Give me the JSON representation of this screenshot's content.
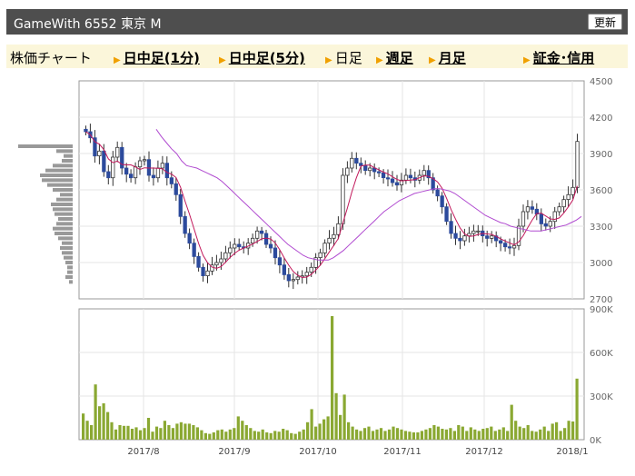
{
  "header": {
    "title": "GameWith  6552  東京 M",
    "refresh_label": "更新"
  },
  "nav": {
    "label": "株価チャート",
    "items": [
      {
        "label": "日中足(1分)",
        "link": true
      },
      {
        "label": "日中足(5分)",
        "link": true
      },
      {
        "label": "日足",
        "link": false
      },
      {
        "label": "週足",
        "link": true
      },
      {
        "label": "月足",
        "link": true
      },
      {
        "label": "証金･信用",
        "link": true
      }
    ]
  },
  "colors": {
    "up": "#ffffff",
    "down": "#2c4a9c",
    "ma_short": "#c2185b",
    "ma_long": "#b04ad0",
    "volume": "#8aa832",
    "accent": "#f0a000"
  },
  "chart_data": [
    {
      "type": "candlestick",
      "ylim": [
        2700,
        4500
      ],
      "yticks": [
        "4500",
        "4200",
        "3900",
        "3600",
        "3300",
        "3000",
        "2700"
      ],
      "xticks": [
        "2017/8",
        "2017/9",
        "2017/10",
        "2017/11",
        "2017/12",
        "2018/1"
      ],
      "series": [
        {
          "values": [
            4080,
            4030,
            3880,
            3920,
            3750,
            3700,
            3870,
            3950,
            3780,
            3730,
            3700,
            3790,
            3840,
            3850,
            3720,
            3700,
            3780,
            3820,
            3700,
            3650,
            3560,
            3380,
            3240,
            3160,
            3050,
            2960,
            2890,
            2930,
            2980,
            3000,
            3030,
            3080,
            3120,
            3150,
            3130,
            3120,
            3160,
            3200,
            3260,
            3240,
            3150,
            3120,
            3040,
            2980,
            2900,
            2850,
            2860,
            2880,
            2890,
            2920,
            2960,
            3040,
            3080,
            3160,
            3200,
            3230,
            3320,
            3720,
            3780,
            3860,
            3820,
            3800,
            3760,
            3780,
            3750,
            3740,
            3700,
            3690,
            3660,
            3640,
            3680,
            3720,
            3700,
            3680,
            3720,
            3760,
            3700,
            3600,
            3550,
            3460,
            3340,
            3240,
            3200,
            3180,
            3220,
            3240,
            3260,
            3260,
            3220,
            3200,
            3220,
            3180,
            3160,
            3130,
            3120,
            3140,
            3300,
            3420,
            3460,
            3440,
            3400,
            3320,
            3300,
            3340,
            3420,
            3460,
            3520,
            3560,
            3620,
            4000
          ]
        },
        {
          "values": [
            4100,
            4040,
            3990,
            3940,
            3900,
            3840,
            3800,
            3790,
            3780,
            3760,
            3740,
            3720,
            3700,
            3670,
            3630,
            3590,
            3550,
            3510,
            3470,
            3430,
            3390,
            3350,
            3310,
            3270,
            3230,
            3190,
            3150,
            3120,
            3090,
            3060,
            3040,
            3030,
            3020,
            3020,
            3020,
            3040,
            3070,
            3100,
            3140,
            3180,
            3220,
            3260,
            3300,
            3340,
            3380,
            3420,
            3450,
            3480,
            3510,
            3530,
            3550,
            3570,
            3580,
            3590,
            3600,
            3610,
            3610,
            3600,
            3590,
            3570,
            3540,
            3510,
            3480,
            3450,
            3420,
            3390,
            3370,
            3350,
            3330,
            3320,
            3300,
            3290,
            3280,
            3270,
            3260,
            3260,
            3260,
            3270,
            3280,
            3290,
            3300,
            3310,
            3330,
            3350,
            3380
          ]
        }
      ]
    },
    {
      "type": "bar",
      "ylim": [
        0,
        900000
      ],
      "yticks": [
        "900K",
        "600K",
        "300K",
        "0K"
      ],
      "values": [
        180000,
        130000,
        100000,
        380000,
        230000,
        250000,
        190000,
        120000,
        70000,
        100000,
        95000,
        95000,
        75000,
        85000,
        65000,
        80000,
        150000,
        55000,
        90000,
        80000,
        130000,
        100000,
        80000,
        110000,
        120000,
        110000,
        110000,
        100000,
        85000,
        65000,
        45000,
        40000,
        50000,
        65000,
        70000,
        55000,
        70000,
        80000,
        160000,
        130000,
        100000,
        80000,
        60000,
        55000,
        70000,
        50000,
        45000,
        60000,
        55000,
        75000,
        65000,
        45000,
        40000,
        55000,
        70000,
        120000,
        210000,
        90000,
        110000,
        140000,
        160000,
        850000,
        320000,
        170000,
        310000,
        120000,
        90000,
        70000,
        60000,
        80000,
        90000,
        60000,
        70000,
        80000,
        60000,
        70000,
        90000,
        80000,
        70000,
        60000,
        55000,
        50000,
        50000,
        60000,
        70000,
        80000,
        100000,
        90000,
        75000,
        70000,
        80000,
        60000,
        100000,
        90000,
        60000,
        85000,
        70000,
        60000,
        75000,
        80000,
        90000,
        60000,
        70000,
        85000,
        60000,
        240000,
        130000,
        90000,
        80000,
        100000,
        60000,
        55000,
        70000,
        90000,
        60000,
        110000,
        120000,
        60000,
        80000,
        130000,
        125000,
        420000
      ]
    }
  ]
}
